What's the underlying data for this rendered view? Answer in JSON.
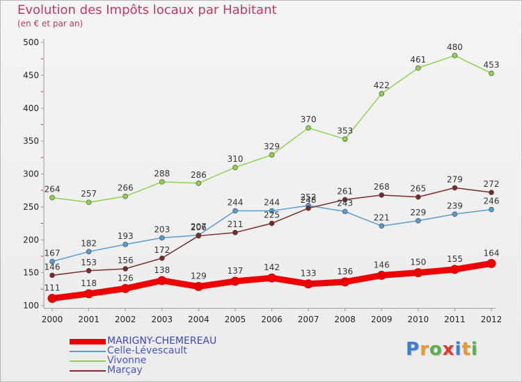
{
  "title": "Evolution des Impôts locaux par Habitant",
  "subtitle": "(en € et par an)",
  "logo": {
    "letters": [
      "P",
      "r",
      "o",
      "x",
      "i",
      "t",
      "i"
    ],
    "colors": [
      "#3a7fd0",
      "#e89a2c",
      "#5ab04a",
      "#e03a2e",
      "#3a7fd0",
      "#e89a2c",
      "#5ab04a"
    ]
  },
  "chart_data": {
    "type": "line",
    "title": "Evolution des Impôts locaux par Habitant",
    "subtitle": "(en € et par an)",
    "xlabel": "",
    "ylabel": "",
    "x": [
      "2000",
      "2001",
      "2002",
      "2003",
      "2004",
      "2005",
      "2006",
      "2007",
      "2008",
      "2009",
      "2010",
      "2011",
      "2012"
    ],
    "ylim": [
      100,
      500
    ],
    "yticks": [
      "100",
      "150",
      "200",
      "250",
      "300",
      "350",
      "400",
      "450",
      "500"
    ],
    "grid": false,
    "legend_position": "bottom-left",
    "series": [
      {
        "name": "MARIGNY-CHEMEREAU",
        "color": "#ee0000",
        "emphasis": true,
        "values": [
          111,
          118,
          126,
          138,
          129,
          137,
          142,
          133,
          136,
          146,
          150,
          155,
          164
        ]
      },
      {
        "name": "Celle-Lévescault",
        "color": "#5a9bcf",
        "emphasis": false,
        "values": [
          167,
          182,
          193,
          203,
          207,
          244,
          244,
          252,
          243,
          221,
          229,
          239,
          246
        ]
      },
      {
        "name": "Vivonne",
        "color": "#8fd14f",
        "emphasis": false,
        "values": [
          264,
          257,
          266,
          288,
          286,
          310,
          329,
          370,
          353,
          422,
          461,
          480,
          453
        ]
      },
      {
        "name": "Marçay",
        "color": "#7a2a2a",
        "emphasis": false,
        "values": [
          146,
          153,
          156,
          172,
          206,
          211,
          225,
          248,
          261,
          268,
          265,
          279,
          272
        ]
      }
    ]
  }
}
